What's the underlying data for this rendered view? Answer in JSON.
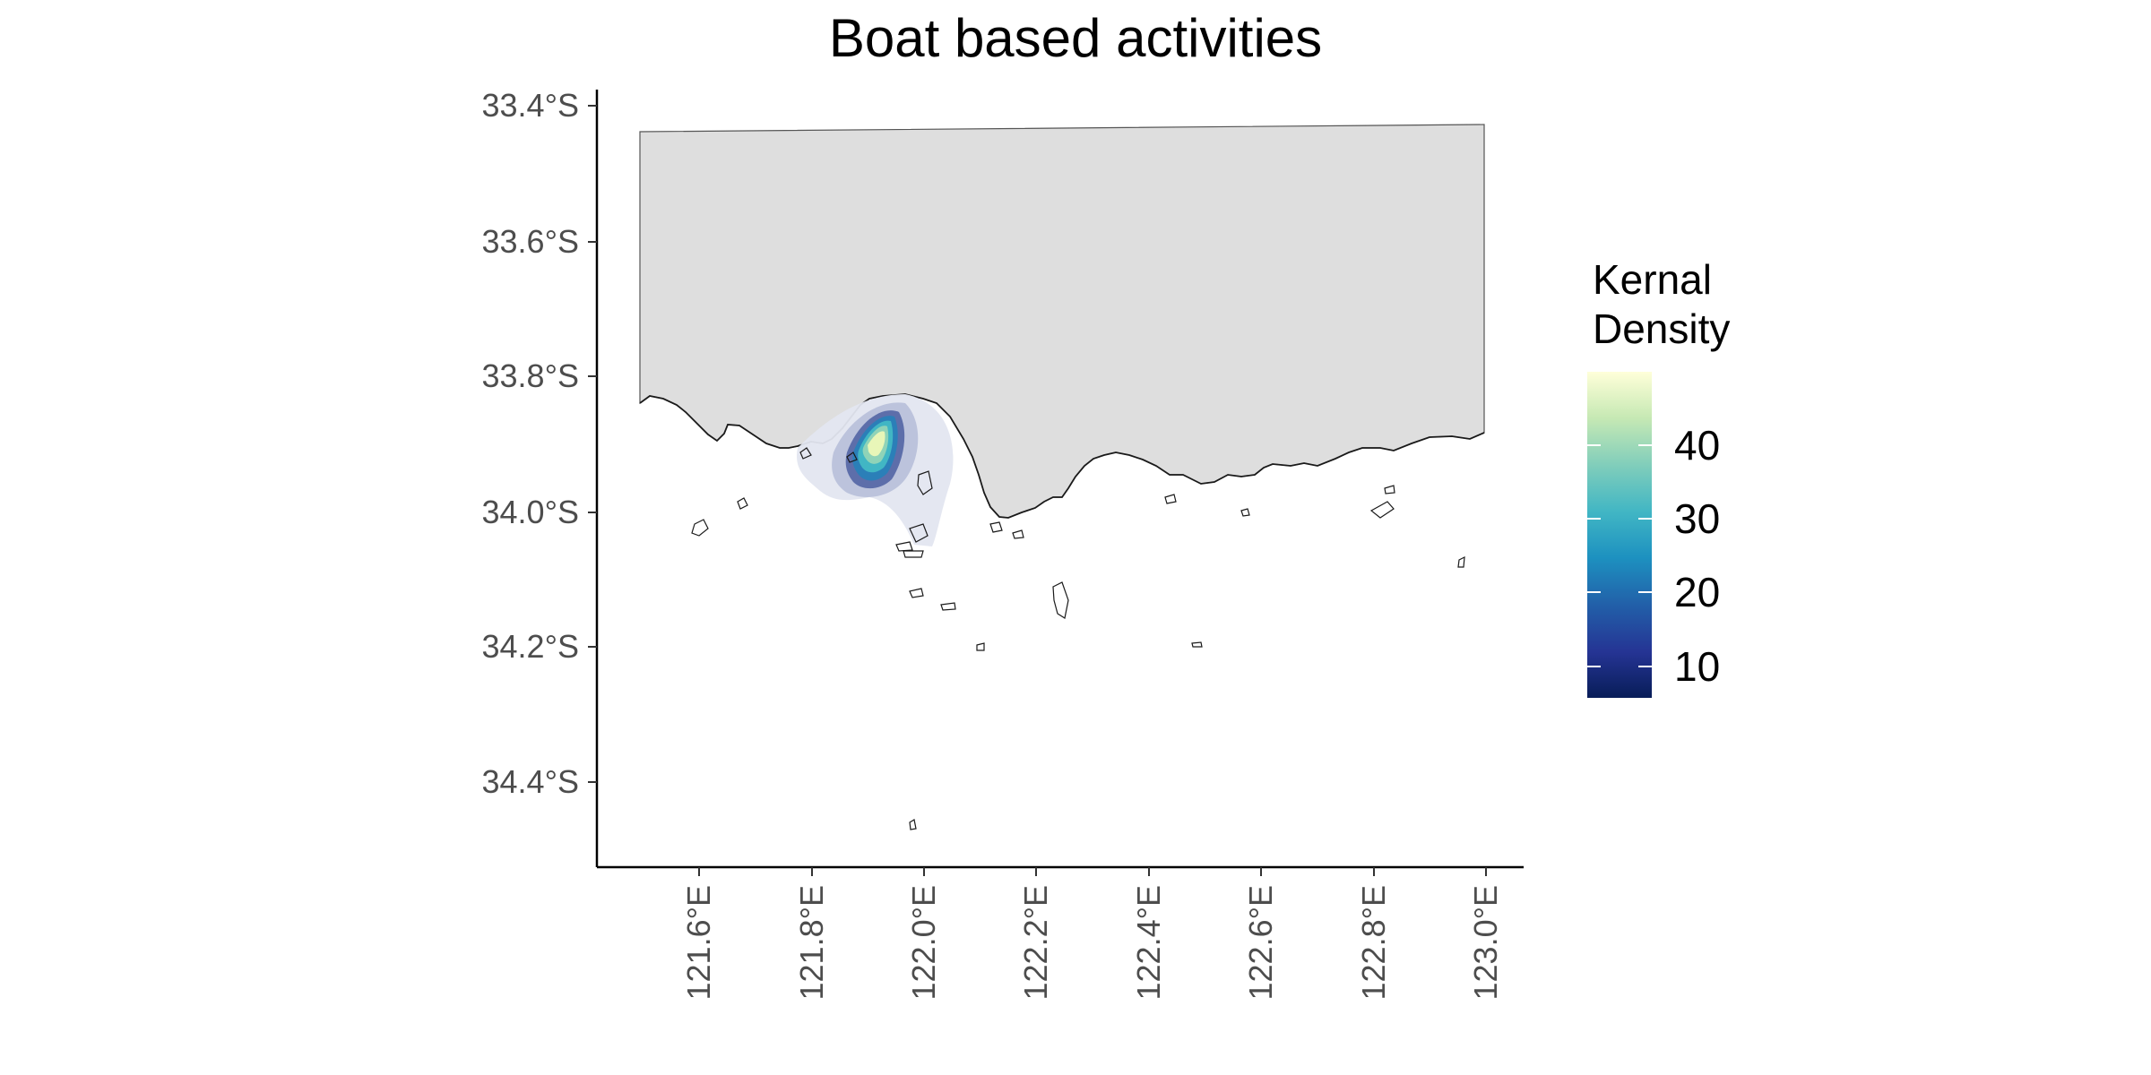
{
  "title": "Boat based activities",
  "map": {
    "y_ticks": [
      "33.4°S",
      "33.6°S",
      "33.8°S",
      "34.0°S",
      "34.2°S",
      "34.4°S"
    ],
    "x_ticks": [
      "121.6°E",
      "121.8°E",
      "122.0°E",
      "122.2°E",
      "122.4°E",
      "122.6°E",
      "122.8°E",
      "123.0°E"
    ],
    "land_fill": "#dedede",
    "coast_color": "#1a1a1a"
  },
  "legend": {
    "title_line1": "Kernal",
    "title_line2": "Density",
    "labels": [
      "40",
      "30",
      "20",
      "10"
    ],
    "colors": [
      "#081d58",
      "#253494",
      "#225ea8",
      "#1d91c0",
      "#41b6c4",
      "#7fcdbb",
      "#c7e9b4",
      "#ffffd9"
    ]
  },
  "chart_data": {
    "type": "heatmap",
    "title": "Boat based activities",
    "xlim": [
      121.45,
      123.0
    ],
    "ylim": [
      -34.52,
      -33.38
    ],
    "legend_title": "Kernal Density",
    "legend_ticks": [
      10,
      20,
      30,
      40
    ],
    "density_range": [
      5,
      49
    ],
    "hotspot_center": {
      "lon": 121.88,
      "lat": -33.88,
      "peak": 49
    }
  }
}
